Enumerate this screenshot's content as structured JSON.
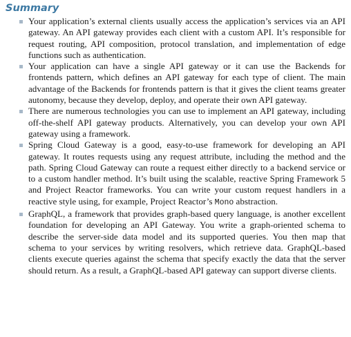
{
  "summary": {
    "title": "Summary",
    "bullets": [
      {
        "text": "Your application’s external clients usually access the application’s services via an API gateway. An API gateway provides each client with a custom API. It’s responsible for request routing, API composition, protocol translation, and implementation of edge functions such as authentication."
      },
      {
        "text": "Your application can have a single API gateway or it can use the Backends for frontends pattern, which defines an API gateway for each type of client. The main advantage of the Backends for frontends pattern is that it gives the client teams greater autonomy, because they develop, deploy, and operate their own API gateway."
      },
      {
        "text": "There are numerous technologies you can use to implement an API gateway, including off-the-shelf API gateway products. Alternatively, you can develop your own API gateway using a framework."
      },
      {
        "text_before_code": "Spring Cloud Gateway is a good, easy-to-use framework for developing an API gateway. It routes requests using any request attribute, including the method and the path. Spring Cloud Gateway can route a request either directly to a backend service or to a custom handler method. It’s built using the scalable, reactive Spring Framework 5 and Project Reactor frameworks. You can write your custom request handlers in a reactive style using, for example, Project Reactor’s ",
        "code": "Mono",
        "text_after_code": " abstraction."
      },
      {
        "text": "GraphQL, a framework that provides graph-based query language, is another excellent foundation for developing an API Gateway. You write a graph-oriented schema to describe the server-side data model and its supported queries. You then map that schema to your services by writing resolvers, which retrieve data. GraphQL-based clients execute queries against the schema that specify exactly the data that the server should return. As a result, a GraphQL-based API gateway can support diverse clients."
      }
    ]
  },
  "colors": {
    "title": "#3d79a3",
    "bullet": "#a7b8c8",
    "text": "#1b1b1b"
  }
}
